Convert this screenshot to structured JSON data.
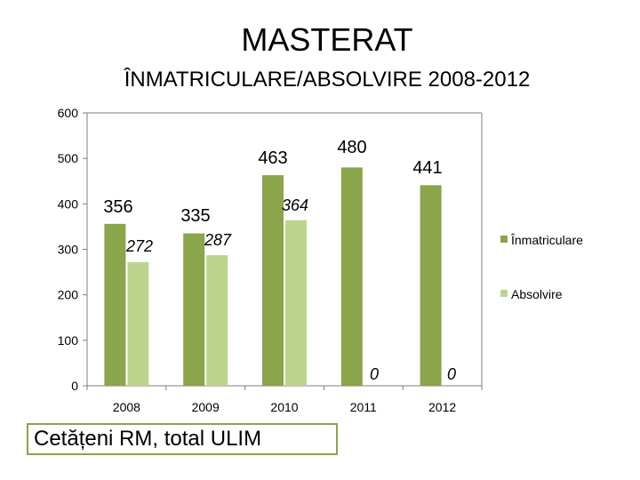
{
  "header": {
    "title": "MASTERAT",
    "subtitle": "ÎNMATRICULARE/ABSOLVIRE  2008-2012"
  },
  "footer": {
    "note": "Cetățeni RM, total ULIM"
  },
  "colors": {
    "inmatriculare": "#8aa54a",
    "absolvire": "#bdd48f",
    "axis": "#7f7f7f"
  },
  "chart_data": {
    "type": "bar",
    "categories": [
      "2008",
      "2009",
      "2010",
      "2011",
      "2012"
    ],
    "series": [
      {
        "name": "Înmatriculare",
        "values": [
          356,
          335,
          463,
          480,
          441
        ],
        "labels": [
          "356",
          "335",
          "463",
          "480",
          "441"
        ]
      },
      {
        "name": "Absolvire",
        "values": [
          272,
          287,
          364,
          0,
          0
        ],
        "labels": [
          "272",
          "287",
          "364",
          "0",
          "0"
        ]
      }
    ],
    "ylim": [
      0,
      600
    ],
    "yticks": [
      "0",
      "100",
      "200",
      "300",
      "400",
      "500",
      "600"
    ],
    "grid": false,
    "legend": "right"
  }
}
